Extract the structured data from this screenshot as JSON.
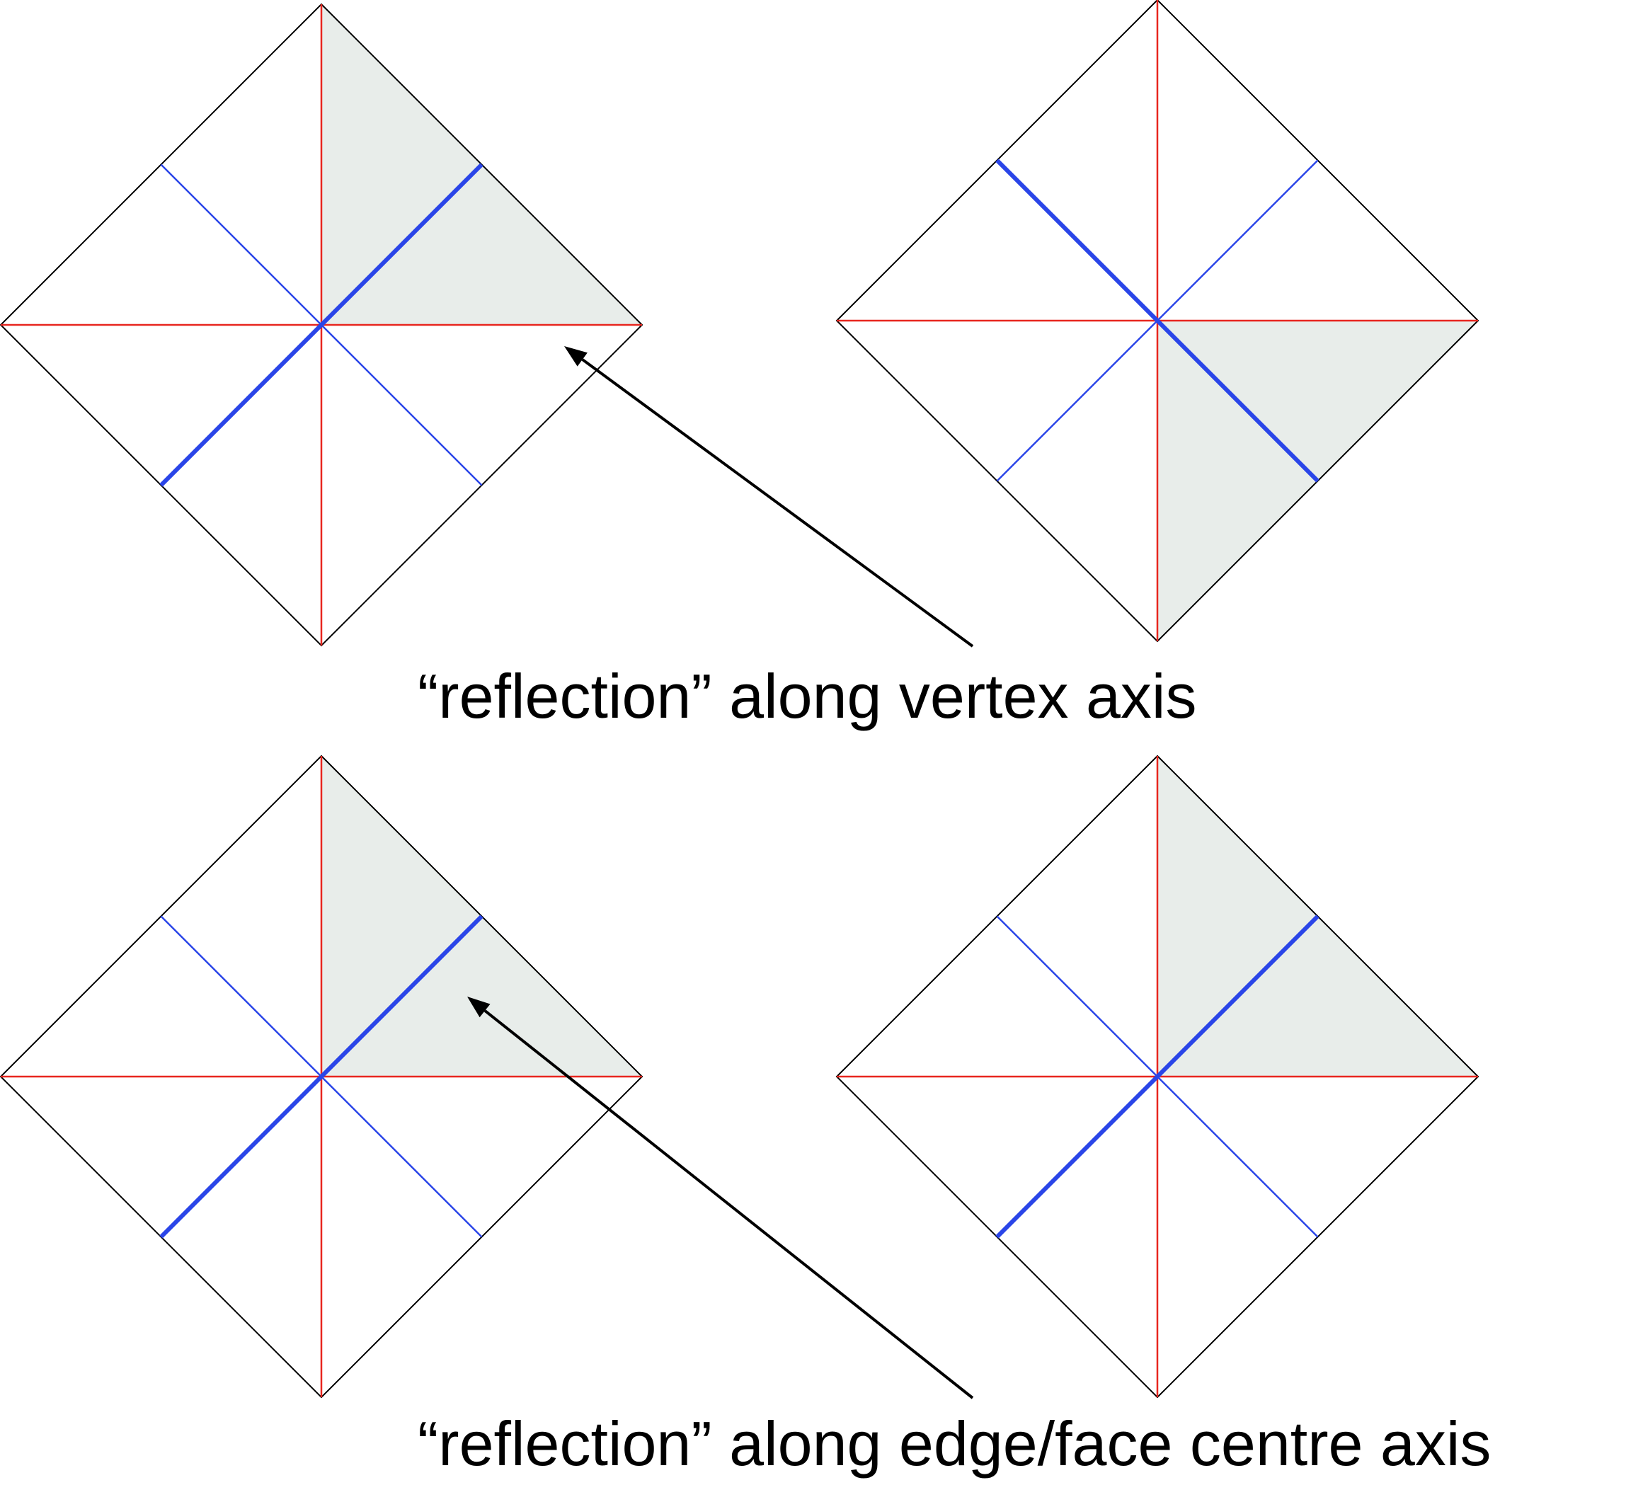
{
  "colors": {
    "outline": "#000000",
    "vertex_axis": "#e8261f",
    "edge_axis": "#2a45e8",
    "shaded_region": "#e8edea",
    "arrow": "#000000"
  },
  "captions": {
    "vertex_reflection": "“reflection” along vertex axis",
    "edge_reflection": "“reflection” along edge/face centre axis"
  },
  "panels": [
    {
      "name": "top-left",
      "shaded_sectors": [
        "top-right-upper",
        "top-right-lower"
      ],
      "bold_diagonal": "bottom-left-to-top-right"
    },
    {
      "name": "top-right",
      "shaded_sectors": [
        "bottom-right-upper",
        "bottom-right-lower"
      ],
      "bold_diagonal": "top-left-to-bottom-right"
    },
    {
      "name": "bottom-left",
      "shaded_sectors": [
        "top-right-upper",
        "top-right-lower"
      ],
      "bold_diagonal": "bottom-left-to-top-right"
    },
    {
      "name": "bottom-right",
      "shaded_sectors": [
        "top-right-upper",
        "top-right-lower"
      ],
      "bold_diagonal": "bottom-left-to-top-right"
    }
  ]
}
